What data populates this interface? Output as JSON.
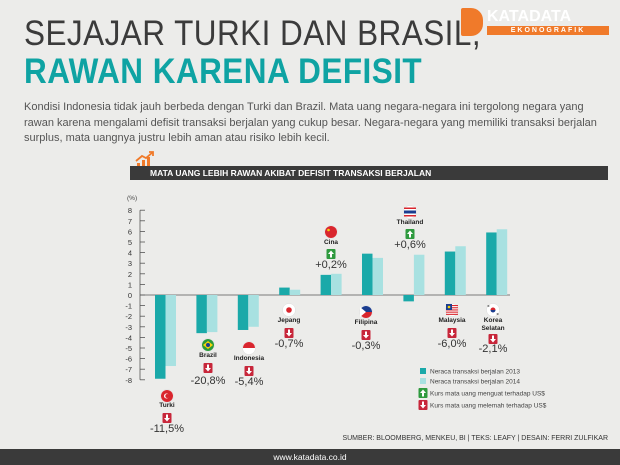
{
  "title": {
    "line1": "SEJAJAR TURKI DAN BRASIL,",
    "line2": "RAWAN KARENA DEFISIT"
  },
  "brand": {
    "name": "KATADATA",
    "sub": "EKONOGRAFIK"
  },
  "intro": "Kondisi Indonesia tidak jauh berbeda dengan Turki dan Brazil. Mata uang negara-negara ini tergolong negara yang rawan karena mengalami defisit transaksi berjalan yang cukup besar. Negara-negara yang memiliki transaksi berjalan surplus, mata uangnya justru lebih aman atau risiko lebih kecil.",
  "banner": "MATA UANG LEBIH RAWAN AKIBAT DEFISIT TRANSAKSI BERJALAN",
  "source": "SUMBER: BLOOMBERG, MENKEU, BI | TEKS: LEAFY | DESAIN: FERRI ZULFIKAR",
  "footer": "www.katadata.co.id",
  "chart_data": {
    "type": "bar",
    "ylabel": "(%)",
    "ylim": [
      -8,
      8
    ],
    "yticks": [
      "8",
      "7",
      "6",
      "5",
      "4",
      "3",
      "2",
      "1",
      "0",
      "-1",
      "-2",
      "-3",
      "-4",
      "-5",
      "-6",
      "-7",
      "-8"
    ],
    "categories": [
      "Turki",
      "Brazil",
      "Indonesia",
      "Jepang",
      "Cina",
      "Filipina",
      "Thailand",
      "Malaysia",
      "Korea Selatan"
    ],
    "series": [
      {
        "name": "Neraca transaksi berjalan 2013",
        "color": "#1aa9a9",
        "values": [
          -7.9,
          -3.6,
          -3.3,
          0.7,
          1.9,
          3.9,
          -0.6,
          4.1,
          5.9
        ]
      },
      {
        "name": "Neraca transaksi berjalan 2014",
        "color": "#a8e1e1",
        "values": [
          -6.7,
          -3.5,
          -3.0,
          0.5,
          2.0,
          3.5,
          3.8,
          4.6,
          6.2
        ]
      }
    ],
    "currency_change": [
      "-11,5%",
      "-20,8%",
      "-5,4%",
      "-0,7%",
      "+0,2%",
      "-0,3%",
      "+0,6%",
      "-6,0%",
      "-2,1%"
    ],
    "currency_direction": [
      "down",
      "down",
      "down",
      "down",
      "up",
      "down",
      "up",
      "down",
      "down"
    ],
    "legend": {
      "bar_2013": "Neraca transaksi berjalan 2013",
      "bar_2014": "Neraca transaksi berjalan 2014",
      "up": "Kurs mata uang menguat terhadap US$",
      "down": "Kurs mata uang melemah terhadap US$"
    },
    "colors": {
      "up": "#2e9a3e",
      "down": "#c7263a"
    }
  }
}
